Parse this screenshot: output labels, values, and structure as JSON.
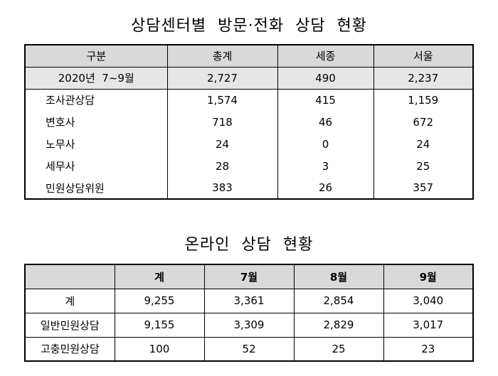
{
  "title1": "상담센터별  방문·전화  상담  현황",
  "table1": {
    "headers": [
      "구분",
      "총계",
      "세종",
      "서울"
    ],
    "rows": [
      [
        "2020년  7~9월",
        "2,727",
        "490",
        "2,237"
      ],
      [
        "조사관상담",
        "1,574",
        "415",
        "1,159"
      ],
      [
        "변호사",
        "718",
        "46",
        "672"
      ],
      [
        "노무사",
        "24",
        "0",
        "24"
      ],
      [
        "세무사",
        "28",
        "3",
        "25"
      ],
      [
        "민원상담위원",
        "383",
        "26",
        "357"
      ]
    ]
  },
  "title2": "온라인  상담  현황",
  "table2": {
    "headers": [
      "",
      "계",
      "7월",
      "8월",
      "9월"
    ],
    "rows": [
      [
        "계",
        "9,255",
        "3,361",
        "2,854",
        "3,040"
      ],
      [
        "일반민원상담",
        "9,155",
        "3,309",
        "2,829",
        "3,017"
      ],
      [
        "고충민원상담",
        "100",
        "52",
        "25",
        "23"
      ]
    ]
  }
}
